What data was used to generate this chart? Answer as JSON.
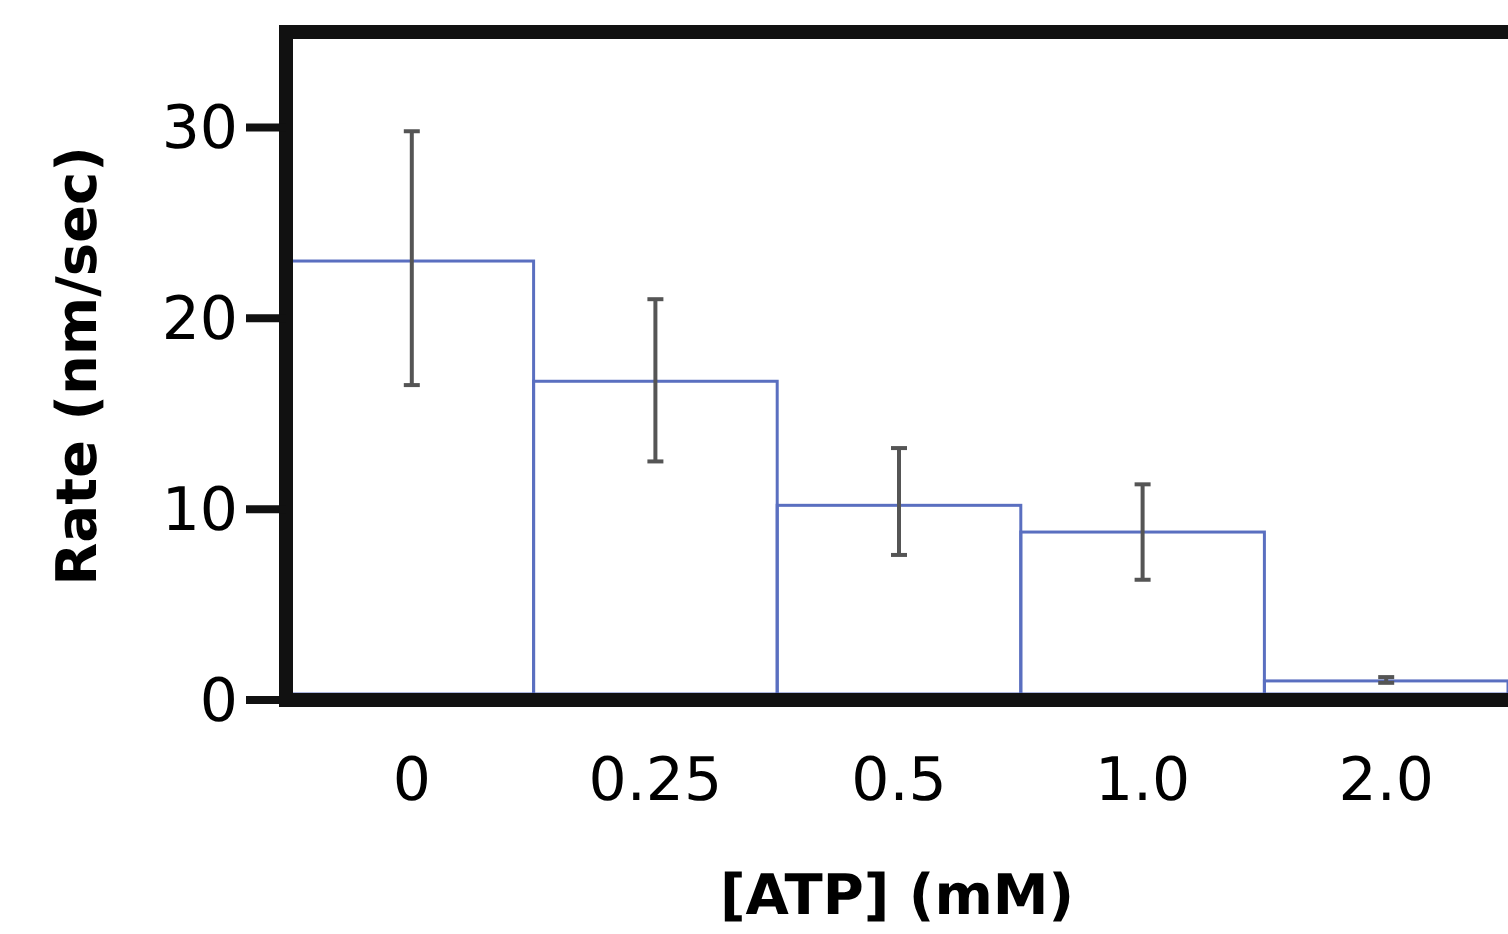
{
  "chart_data": {
    "type": "bar",
    "xlabel": "[ATP] (mM)",
    "ylabel": "Rate (nm/sec)",
    "categories": [
      "0",
      "0.25",
      "0.5",
      "1.0",
      "2.0"
    ],
    "values": [
      23.0,
      16.7,
      10.2,
      8.8,
      1.0
    ],
    "errors": [
      [
        16.5,
        29.8
      ],
      [
        12.5,
        21.0
      ],
      [
        7.6,
        13.2
      ],
      [
        6.3,
        11.3
      ],
      [
        0.9,
        1.2
      ]
    ],
    "color": "#5a6fc0",
    "ylim": [
      0,
      35
    ],
    "yticks": [
      0,
      10,
      20,
      30
    ],
    "grid": false
  }
}
